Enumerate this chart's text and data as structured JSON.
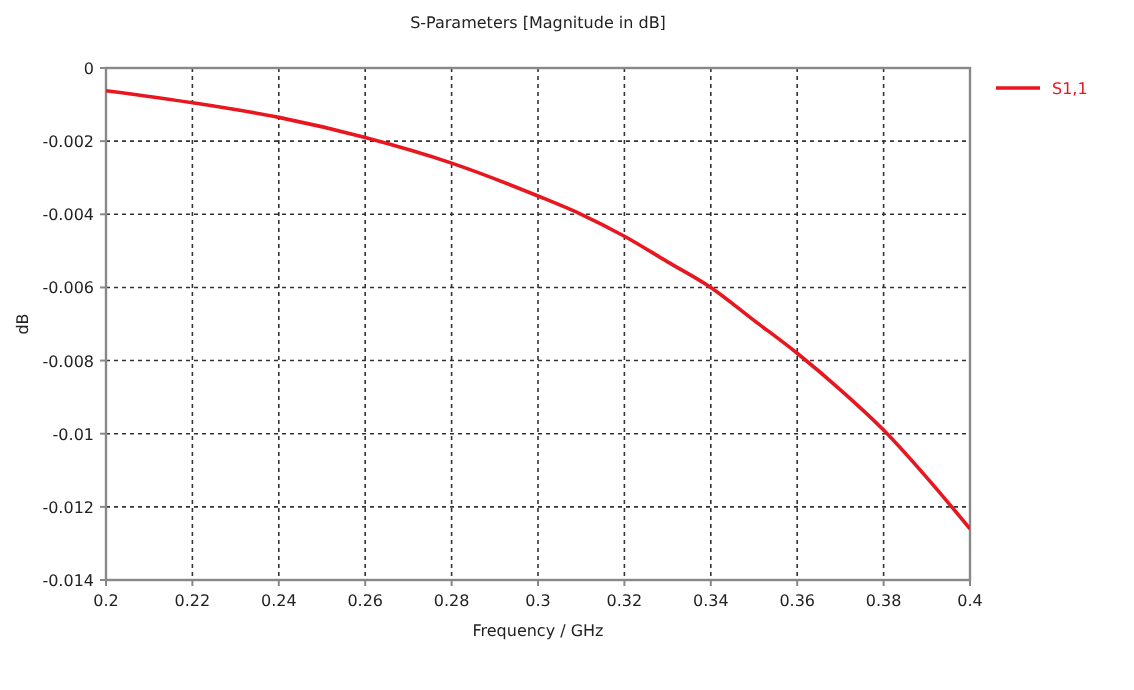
{
  "chart_data": {
    "type": "line",
    "title": "S-Parameters [Magnitude in dB]",
    "xlabel": "Frequency / GHz",
    "ylabel": "dB",
    "x": [
      0.2,
      0.22,
      0.24,
      0.26,
      0.28,
      0.3,
      0.31,
      0.32,
      0.33,
      0.34,
      0.35,
      0.36,
      0.37,
      0.38,
      0.39,
      0.4
    ],
    "series": [
      {
        "name": "S1,1",
        "color": "#e8161e",
        "values": [
          -0.00062,
          -0.00095,
          -0.00135,
          -0.0019,
          -0.0026,
          -0.0035,
          -0.004,
          -0.0046,
          -0.0053,
          -0.006,
          -0.0069,
          -0.0078,
          -0.0088,
          -0.0099,
          -0.0112,
          -0.0126
        ]
      }
    ],
    "xlim": [
      0.2,
      0.4
    ],
    "xticks": [
      0.2,
      0.22,
      0.24,
      0.26,
      0.28,
      0.3,
      0.32,
      0.34,
      0.36,
      0.38,
      0.4
    ],
    "ylim": [
      -0.014,
      0
    ],
    "yticks": [
      -0.014,
      -0.012,
      -0.01,
      -0.008,
      -0.006,
      -0.004,
      -0.002,
      0
    ],
    "grid": true,
    "legend": "top right",
    "line_style": "solid",
    "marker": "none"
  }
}
